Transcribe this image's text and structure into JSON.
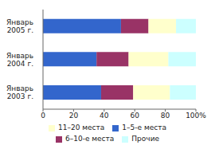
{
  "chart_data": {
    "type": "bar",
    "orientation": "horizontal",
    "stacked": true,
    "categories": [
      "Январь 2005 г.",
      "Январь 2004 г.",
      "Январь 2003 г."
    ],
    "series": [
      {
        "name": "1–5-е места",
        "color": "#3366cc",
        "values": [
          51,
          35,
          38
        ]
      },
      {
        "name": "6–10-е места",
        "color": "#993366",
        "values": [
          18,
          21,
          21
        ]
      },
      {
        "name": "11–20 места",
        "color": "#ffffcc",
        "values": [
          18,
          26,
          24
        ]
      },
      {
        "name": "Прочие",
        "color": "#ccffff",
        "values": [
          13,
          18,
          17
        ]
      }
    ],
    "xlim": [
      0,
      100
    ],
    "xticks": [
      0,
      20,
      40,
      60,
      80,
      {
        "value": 100,
        "label": "100%"
      }
    ]
  }
}
